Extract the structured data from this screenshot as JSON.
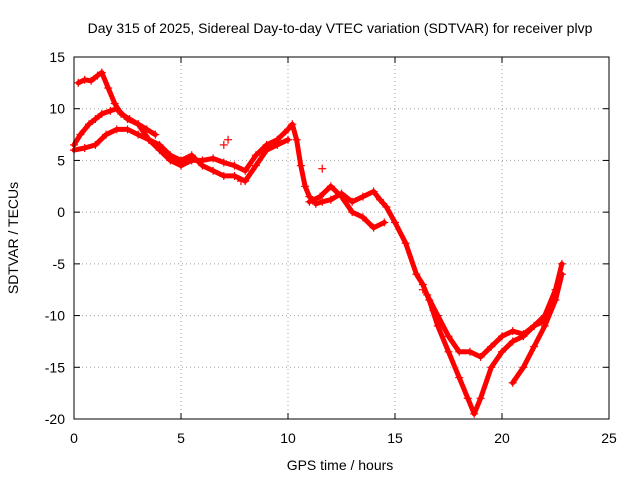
{
  "chart_data": {
    "type": "scatter",
    "title": "Day 315 of 2025, Sidereal Day-to-day VTEC variation (SDTVAR) for receiver plvp",
    "xlabel": "GPS time / hours",
    "ylabel": "SDTVAR / TECUs",
    "xlim": [
      0,
      25
    ],
    "ylim": [
      -20,
      15
    ],
    "xticks": [
      0,
      5,
      10,
      15,
      20,
      25
    ],
    "yticks": [
      -20,
      -15,
      -10,
      -5,
      0,
      5,
      10,
      15
    ],
    "xtick_labels": [
      "0",
      "5",
      "10",
      "15",
      "20",
      "25"
    ],
    "ytick_labels": [
      "-20",
      "-15",
      "-10",
      "-5",
      "0",
      "5",
      "10",
      "15"
    ],
    "grid": true,
    "marker": "+",
    "color": "#ff0000",
    "series": [
      {
        "name": "main",
        "x": [
          0.0,
          0.3,
          0.7,
          1.0,
          1.3,
          1.7,
          2.0,
          2.5,
          3.0,
          3.5,
          4.0,
          4.5,
          5.0,
          5.5,
          6.0,
          6.5,
          7.0,
          7.5,
          8.0,
          8.5,
          9.0,
          9.5,
          10.0,
          10.2,
          10.4,
          10.6,
          10.8,
          11.0,
          11.3,
          11.6,
          12.0,
          12.5,
          13.0,
          13.5,
          14.0,
          14.3,
          14.6,
          15.0,
          15.5,
          16.0,
          16.3,
          16.6,
          17.0,
          17.5,
          18.0,
          18.4,
          18.7,
          19.0,
          19.5,
          20.0,
          20.5,
          21.0,
          21.5,
          22.0,
          22.5,
          22.8
        ],
        "y": [
          6.5,
          7.5,
          8.5,
          9.0,
          9.5,
          9.8,
          10.0,
          9.0,
          8.5,
          7.0,
          6.0,
          5.0,
          4.5,
          5.0,
          5.0,
          5.2,
          4.8,
          4.5,
          4.0,
          5.5,
          6.5,
          7.0,
          8.0,
          8.5,
          7.0,
          4.5,
          2.5,
          1.5,
          0.8,
          1.0,
          1.2,
          1.8,
          1.0,
          1.5,
          2.0,
          1.2,
          0.5,
          -1.0,
          -3.0,
          -6.0,
          -7.0,
          -8.5,
          -11.0,
          -13.5,
          -16.0,
          -18.0,
          -19.5,
          -18.0,
          -15.0,
          -13.5,
          -12.5,
          -12.0,
          -11.0,
          -10.0,
          -7.5,
          -5.0
        ]
      },
      {
        "name": "upper-early",
        "x": [
          0.2,
          0.5,
          0.8,
          1.1,
          1.3,
          1.6,
          1.9,
          2.2,
          2.6,
          3.0,
          3.4,
          3.8
        ],
        "y": [
          12.5,
          12.8,
          12.7,
          13.2,
          13.5,
          12.0,
          10.5,
          9.5,
          9.0,
          8.5,
          8.0,
          7.5
        ]
      },
      {
        "name": "lower-early",
        "x": [
          0.0,
          0.5,
          1.0,
          1.5,
          2.0,
          2.5,
          3.0,
          3.5,
          4.0,
          4.5,
          5.0,
          5.5,
          6.0,
          6.5,
          7.0,
          7.5,
          8.0,
          8.5,
          9.0,
          9.5,
          10.0
        ],
        "y": [
          6.0,
          6.2,
          6.5,
          7.5,
          8.0,
          8.0,
          7.5,
          7.0,
          6.5,
          5.5,
          5.0,
          5.5,
          4.5,
          4.0,
          3.5,
          3.5,
          3.0,
          4.5,
          6.0,
          6.5,
          7.0
        ]
      },
      {
        "name": "mid-split",
        "x": [
          11.0,
          11.5,
          12.0,
          12.5,
          13.0,
          13.5,
          14.0,
          14.5
        ],
        "y": [
          1.0,
          1.5,
          2.5,
          1.5,
          0.0,
          -0.5,
          -1.5,
          -1.0
        ]
      },
      {
        "name": "trough-upper",
        "x": [
          16.5,
          17.0,
          17.5,
          18.0,
          18.5,
          19.0,
          19.5,
          20.0,
          20.5,
          21.0,
          21.5,
          22.0
        ],
        "y": [
          -8.0,
          -10.0,
          -12.0,
          -13.5,
          -13.5,
          -14.0,
          -13.0,
          -12.0,
          -11.5,
          -11.8,
          -11.0,
          -10.5
        ]
      },
      {
        "name": "late-rise",
        "x": [
          20.5,
          21.0,
          21.5,
          22.0,
          22.5,
          22.8
        ],
        "y": [
          -16.5,
          -15.0,
          -13.0,
          -11.0,
          -8.5,
          -6.0
        ]
      },
      {
        "name": "outliers",
        "x": [
          7.0,
          7.2,
          7.8,
          11.6,
          16.3,
          16.8
        ],
        "y": [
          6.5,
          7.0,
          3.0,
          4.2,
          -7.5,
          -9.5
        ]
      }
    ]
  }
}
